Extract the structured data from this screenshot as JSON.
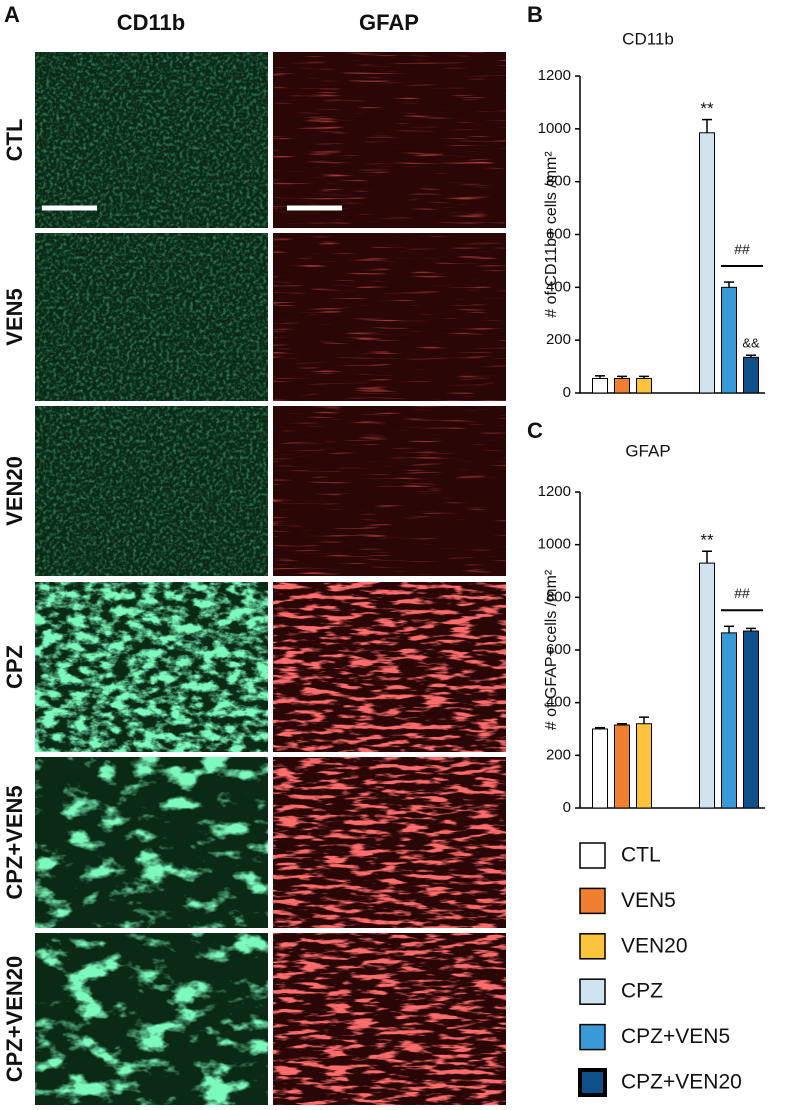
{
  "figure": {
    "panel_labels": [
      "A",
      "B",
      "C"
    ],
    "column_labels": [
      "CD11b",
      "GFAP"
    ],
    "row_labels": [
      "CTL",
      "VEN5",
      "VEN20",
      "CPZ",
      "CPZ+VEN5",
      "CPZ+VEN20"
    ]
  },
  "chart_data": [
    {
      "type": "bar",
      "title": "CD11b",
      "y_label": "# of CD11b+ cells /mm²",
      "categories": [
        "CTL",
        "VEN5",
        "VEN20",
        "CPZ",
        "CPZ+VEN5",
        "CPZ+VEN20"
      ],
      "values": [
        55,
        55,
        55,
        985,
        400,
        135
      ],
      "errors": [
        10,
        8,
        8,
        50,
        20,
        8
      ],
      "colors": [
        "#ffffff",
        "#f08030",
        "#fcc43c",
        "#cfe4ee",
        "#3a9ad8",
        "#10508a"
      ],
      "ylim": [
        0,
        1200
      ],
      "yticks": [
        0,
        200,
        400,
        600,
        800,
        1000,
        1200
      ],
      "annotations": [
        "**",
        "##",
        "&&"
      ]
    },
    {
      "type": "bar",
      "title": "GFAP",
      "y_label": "# of GFAP+ cells /mm²",
      "categories": [
        "CTL",
        "VEN5",
        "VEN20",
        "CPZ",
        "CPZ+VEN5",
        "CPZ+VEN20"
      ],
      "values": [
        300,
        315,
        320,
        930,
        665,
        672
      ],
      "errors": [
        5,
        5,
        25,
        45,
        25,
        10
      ],
      "colors": [
        "#ffffff",
        "#f08030",
        "#fcc43c",
        "#cfe4ee",
        "#3a9ad8",
        "#10508a"
      ],
      "ylim": [
        0,
        1200
      ],
      "yticks": [
        0,
        200,
        400,
        600,
        800,
        1000,
        1200
      ],
      "annotations": [
        "**",
        "##"
      ]
    }
  ]
}
